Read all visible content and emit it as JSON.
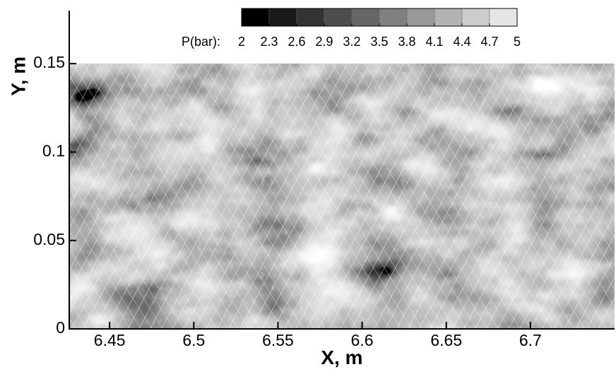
{
  "chart_data": {
    "type": "field",
    "x_label": "X, m",
    "y_label": "Y, m",
    "xlim": [
      6.426,
      6.75
    ],
    "xticks": [
      6.45,
      6.5,
      6.55,
      6.6,
      6.65,
      6.7
    ],
    "ylim": [
      0,
      0.18
    ],
    "yticks": [
      0,
      0.05,
      0.1,
      0.15
    ],
    "colorbar": {
      "label": "P(bar):",
      "lim": [
        2,
        5
      ],
      "ticks": [
        2,
        2.3,
        2.6,
        2.9,
        3.2,
        3.5,
        3.8,
        4.1,
        4.4,
        4.7,
        5
      ]
    }
  }
}
